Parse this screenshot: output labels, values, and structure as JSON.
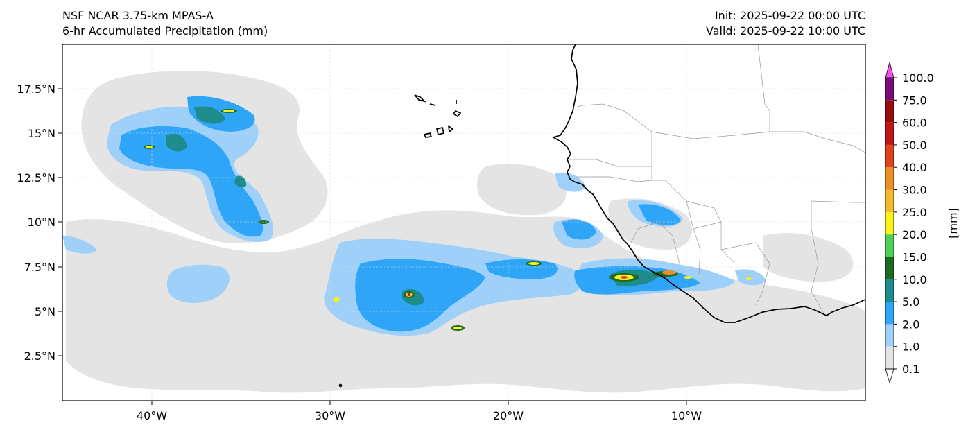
{
  "header": {
    "title_line1": "NSF NCAR 3.75-km MPAS-A",
    "title_line2": "6-hr Accumulated Precipitation (mm)",
    "init": "Init: 2025-09-22 00:00 UTC",
    "valid": "Valid: 2025-09-22 10:00 UTC"
  },
  "map": {
    "lat_ticks": [
      "17.5°N",
      "15°N",
      "12.5°N",
      "10°N",
      "7.5°N",
      "5°N",
      "2.5°N"
    ],
    "lon_ticks": [
      "40°W",
      "30°W",
      "20°W",
      "10°W"
    ],
    "lat_values": [
      17.5,
      15,
      12.5,
      10,
      7.5,
      5,
      2.5
    ],
    "lon_values": [
      -40,
      -30,
      -20,
      -10
    ],
    "extent": {
      "lon_min": -45,
      "lon_max": -0.1,
      "lat_min": 0.1,
      "lat_max": 20
    }
  },
  "colorbar": {
    "unit": "[mm]",
    "levels": [
      "0.1",
      "1.0",
      "2.0",
      "5.0",
      "10.0",
      "15.0",
      "20.0",
      "25.0",
      "30.0",
      "40.0",
      "50.0",
      "60.0",
      "75.0",
      "100.0"
    ],
    "colors": [
      "#e4e4e4",
      "#9ed0fa",
      "#2fa5f8",
      "#1f8c8c",
      "#1d6b20",
      "#4ecf57",
      "#f7f21c",
      "#f5b92e",
      "#ef8f27",
      "#e1421a",
      "#c31416",
      "#9a0a0a",
      "#7a0c7a",
      "#f550f0"
    ]
  }
}
